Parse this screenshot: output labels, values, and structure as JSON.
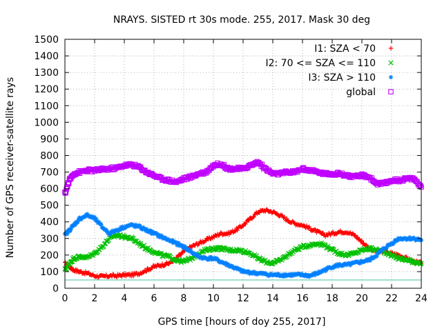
{
  "chart_data": {
    "type": "scatter",
    "title": "NRAYS. SISTED rt 30s mode. 255, 2017. Mask 30 deg",
    "xlabel": "GPS time [hours of doy 255, 2017]",
    "ylabel": "Number of GPS receiver-satellite rays",
    "xlim": [
      0,
      24
    ],
    "ylim": [
      0,
      1500
    ],
    "xticks": [
      "0",
      "2",
      "4",
      "6",
      "8",
      "10",
      "12",
      "14",
      "16",
      "18",
      "20",
      "22",
      "24"
    ],
    "yticks": [
      "0",
      "100",
      "200",
      "300",
      "400",
      "500",
      "600",
      "700",
      "800",
      "900",
      "1000",
      "1100",
      "1200",
      "1300",
      "1400",
      "1500"
    ],
    "grid": true,
    "legend_position": "top-right",
    "reference_line": {
      "y": 50,
      "color": "#40c0a0"
    },
    "series": [
      {
        "name": "I1: SZA < 70",
        "marker": "+",
        "color": "#ff0000",
        "x": [
          0,
          0.3,
          0.6,
          1,
          1.5,
          2,
          2.5,
          3,
          3.5,
          4,
          4.5,
          5,
          5.5,
          6,
          6.5,
          7,
          7.5,
          8,
          8.5,
          9,
          9.5,
          10,
          10.5,
          11,
          11.5,
          12,
          12.5,
          13,
          13.5,
          14,
          14.5,
          15,
          15.5,
          16,
          16.5,
          17,
          17.5,
          18,
          18.5,
          19,
          19.5,
          20,
          20.5,
          21,
          21.5,
          22,
          22.5,
          23,
          23.5,
          24
        ],
        "y": [
          150,
          130,
          110,
          100,
          90,
          75,
          70,
          75,
          75,
          80,
          80,
          90,
          110,
          130,
          140,
          150,
          180,
          220,
          250,
          270,
          290,
          310,
          330,
          330,
          350,
          380,
          420,
          460,
          470,
          460,
          440,
          410,
          390,
          380,
          360,
          340,
          320,
          330,
          340,
          340,
          320,
          280,
          240,
          220,
          220,
          210,
          200,
          180,
          160,
          150
        ]
      },
      {
        "name": "I2: 70 <= SZA <= 110",
        "marker": "x",
        "color": "#00c000",
        "x": [
          0,
          0.3,
          0.6,
          1,
          1.5,
          2,
          2.5,
          3,
          3.5,
          4,
          4.5,
          5,
          5.5,
          6,
          6.5,
          7,
          7.5,
          8,
          8.5,
          9,
          9.5,
          10,
          10.5,
          11,
          11.5,
          12,
          12.5,
          13,
          13.5,
          14,
          14.5,
          15,
          15.5,
          16,
          16.5,
          17,
          17.5,
          18,
          18.5,
          19,
          19.5,
          20,
          20.5,
          21,
          21.5,
          22,
          22.5,
          23,
          23.5,
          24
        ],
        "y": [
          110,
          150,
          180,
          190,
          185,
          210,
          250,
          300,
          320,
          310,
          300,
          270,
          240,
          220,
          200,
          190,
          170,
          160,
          180,
          210,
          230,
          240,
          240,
          230,
          230,
          225,
          210,
          180,
          160,
          150,
          170,
          200,
          230,
          250,
          260,
          270,
          260,
          230,
          210,
          200,
          210,
          230,
          240,
          230,
          220,
          200,
          180,
          170,
          160,
          150
        ]
      },
      {
        "name": "I3: SZA > 110",
        "marker": "*",
        "color": "#0080ff",
        "x": [
          0,
          0.3,
          0.6,
          1,
          1.5,
          2,
          2.5,
          3,
          3.5,
          4,
          4.5,
          5,
          5.5,
          6,
          6.5,
          7,
          7.5,
          8,
          8.5,
          9,
          9.5,
          10,
          10.5,
          11,
          11.5,
          12,
          12.5,
          13,
          13.5,
          14,
          14.5,
          15,
          15.5,
          16,
          16.5,
          17,
          17.5,
          18,
          18.5,
          19,
          19.5,
          20,
          20.5,
          21,
          21.5,
          22,
          22.5,
          23,
          23.5,
          24
        ],
        "y": [
          320,
          350,
          380,
          420,
          440,
          420,
          370,
          330,
          350,
          370,
          380,
          370,
          350,
          330,
          310,
          290,
          270,
          250,
          220,
          190,
          180,
          180,
          160,
          140,
          120,
          100,
          95,
          90,
          85,
          80,
          80,
          80,
          80,
          80,
          75,
          90,
          110,
          130,
          140,
          140,
          150,
          160,
          170,
          200,
          240,
          270,
          300,
          300,
          300,
          290
        ]
      },
      {
        "name": "global",
        "marker": "square",
        "color": "#c000ff",
        "x": [
          0,
          0.3,
          0.6,
          1,
          1.5,
          2,
          2.5,
          3,
          3.5,
          4,
          4.5,
          5,
          5.5,
          6,
          6.5,
          7,
          7.5,
          8,
          8.5,
          9,
          9.5,
          10,
          10.5,
          11,
          11.5,
          12,
          12.5,
          13,
          13.5,
          14,
          14.5,
          15,
          15.5,
          16,
          16.5,
          17,
          17.5,
          18,
          18.5,
          19,
          19.5,
          20,
          20.5,
          21,
          21.5,
          22,
          22.5,
          23,
          23.5,
          24
        ],
        "y": [
          570,
          650,
          690,
          700,
          710,
          710,
          715,
          720,
          725,
          740,
          745,
          730,
          700,
          680,
          660,
          650,
          640,
          660,
          670,
          690,
          700,
          740,
          750,
          720,
          720,
          720,
          740,
          760,
          720,
          690,
          690,
          700,
          700,
          720,
          710,
          700,
          690,
          690,
          690,
          680,
          670,
          680,
          670,
          630,
          630,
          650,
          650,
          660,
          660,
          610
        ]
      }
    ]
  }
}
